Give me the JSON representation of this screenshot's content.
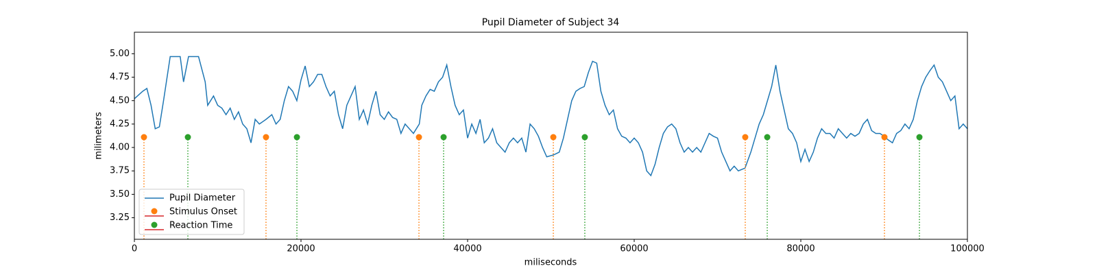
{
  "chart_data": {
    "type": "line",
    "title": "Pupil Diameter of Subject 34",
    "xlabel": "miliseconds",
    "ylabel": "milimeters",
    "xlim": [
      0,
      100000
    ],
    "ylim": [
      3.02,
      5.23
    ],
    "xticks": [
      0,
      20000,
      40000,
      60000,
      80000,
      100000
    ],
    "yticks": [
      3.25,
      {
        "value": 3.5,
        "label": "3.50"
      },
      3.75,
      {
        "value": 4,
        "label": "4.00"
      },
      4.25,
      {
        "value": 4.5,
        "label": "4.50"
      },
      4.75,
      {
        "value": 5,
        "label": "5.00"
      }
    ],
    "legend": "lower left",
    "stem_baseline_color": "#d62728",
    "series": [
      {
        "name": "Pupil Diameter",
        "type": "line",
        "color": "#1f77b4",
        "x": [
          0,
          1000,
          1500,
          2000,
          2500,
          3000,
          3500,
          4300,
          5500,
          5900,
          6500,
          7700,
          8500,
          8800,
          9500,
          10000,
          10500,
          11000,
          11500,
          12000,
          12500,
          13000,
          13500,
          14000,
          14500,
          15000,
          15800,
          16500,
          17000,
          17500,
          18000,
          18500,
          19000,
          19500,
          20000,
          20500,
          21000,
          21500,
          22000,
          22500,
          23000,
          23500,
          24000,
          24500,
          25000,
          25500,
          26000,
          26500,
          27000,
          27500,
          28000,
          28500,
          29000,
          29500,
          30000,
          30500,
          31000,
          31500,
          32000,
          32500,
          33000,
          33500,
          34200,
          34500,
          35000,
          35500,
          36000,
          36500,
          37000,
          37500,
          38000,
          38500,
          39000,
          39500,
          40000,
          40500,
          41000,
          41500,
          42000,
          42500,
          43000,
          43500,
          44000,
          44500,
          45000,
          45500,
          46000,
          46500,
          47000,
          47500,
          48000,
          48500,
          49000,
          49500,
          50300,
          51000,
          51500,
          52000,
          52500,
          53000,
          53500,
          54000,
          54500,
          55000,
          55500,
          56000,
          56500,
          57000,
          57500,
          58000,
          58500,
          59000,
          59500,
          60000,
          60500,
          61000,
          61500,
          62000,
          62500,
          63000,
          63500,
          64000,
          64500,
          65000,
          65500,
          66000,
          66500,
          67000,
          67500,
          68000,
          68500,
          69000,
          69500,
          70000,
          70500,
          71000,
          71500,
          72000,
          72500,
          73300,
          74000,
          74500,
          75000,
          75500,
          76000,
          76500,
          77000,
          77500,
          78000,
          78500,
          79000,
          79500,
          80000,
          80500,
          81000,
          81500,
          82000,
          82500,
          83000,
          83500,
          84000,
          84500,
          85000,
          85500,
          86000,
          86500,
          87000,
          87500,
          88000,
          88500,
          89000,
          89500,
          90000,
          90500,
          91000,
          91500,
          92000,
          92500,
          93000,
          93500,
          94000,
          94500,
          95000,
          95500,
          96000,
          96500,
          97000,
          97500,
          98000,
          98500,
          99000,
          99500,
          100000
        ],
        "values": [
          4.52,
          4.6,
          4.63,
          4.45,
          4.2,
          4.22,
          4.5,
          4.97,
          4.97,
          4.7,
          4.97,
          4.97,
          4.7,
          4.45,
          4.55,
          4.45,
          4.42,
          4.35,
          4.42,
          4.3,
          4.38,
          4.25,
          4.2,
          4.05,
          4.3,
          4.25,
          4.3,
          4.35,
          4.25,
          4.3,
          4.5,
          4.65,
          4.6,
          4.5,
          4.72,
          4.87,
          4.65,
          4.7,
          4.78,
          4.78,
          4.65,
          4.55,
          4.6,
          4.35,
          4.2,
          4.45,
          4.55,
          4.65,
          4.3,
          4.4,
          4.25,
          4.45,
          4.6,
          4.35,
          4.3,
          4.38,
          4.32,
          4.3,
          4.15,
          4.25,
          4.2,
          4.15,
          4.25,
          4.45,
          4.55,
          4.62,
          4.6,
          4.7,
          4.75,
          4.88,
          4.65,
          4.45,
          4.35,
          4.4,
          4.1,
          4.25,
          4.15,
          4.3,
          4.05,
          4.1,
          4.2,
          4.05,
          4.0,
          3.95,
          4.05,
          4.1,
          4.05,
          4.1,
          3.95,
          4.25,
          4.2,
          4.12,
          4.0,
          3.9,
          3.92,
          3.95,
          4.1,
          4.3,
          4.5,
          4.6,
          4.63,
          4.65,
          4.8,
          4.92,
          4.9,
          4.6,
          4.45,
          4.35,
          4.4,
          4.2,
          4.12,
          4.1,
          4.05,
          4.1,
          4.05,
          3.95,
          3.75,
          3.7,
          3.82,
          4.0,
          4.15,
          4.22,
          4.25,
          4.2,
          4.05,
          3.95,
          4.0,
          3.95,
          4.0,
          3.95,
          4.05,
          4.15,
          4.12,
          4.1,
          3.95,
          3.85,
          3.75,
          3.8,
          3.75,
          3.78,
          3.95,
          4.1,
          4.25,
          4.35,
          4.5,
          4.65,
          4.88,
          4.6,
          4.4,
          4.2,
          4.15,
          4.05,
          3.85,
          3.98,
          3.85,
          3.95,
          4.1,
          4.2,
          4.15,
          4.15,
          4.1,
          4.2,
          4.15,
          4.1,
          4.15,
          4.12,
          4.15,
          4.25,
          4.3,
          4.18,
          4.15,
          4.15,
          4.12,
          4.08,
          4.05,
          4.15,
          4.18,
          4.25,
          4.2,
          4.3,
          4.5,
          4.65,
          4.75,
          4.82,
          4.88,
          4.75,
          4.7,
          4.6,
          4.5,
          4.55,
          4.2,
          4.25,
          4.2
        ]
      },
      {
        "name": "Stimulus Onset",
        "type": "stem",
        "color": "#ff7f0e",
        "x": [
          1150,
          15800,
          34160,
          50290,
          73330,
          90040
        ],
        "values": [
          4.11,
          4.11,
          4.11,
          4.11,
          4.11,
          4.11
        ]
      },
      {
        "name": "Reaction Time",
        "type": "stem",
        "color": "#2ca02c",
        "x": [
          6420,
          19510,
          37120,
          54070,
          75970,
          94240
        ],
        "values": [
          4.11,
          4.11,
          4.11,
          4.11,
          4.11,
          4.11
        ]
      }
    ]
  }
}
